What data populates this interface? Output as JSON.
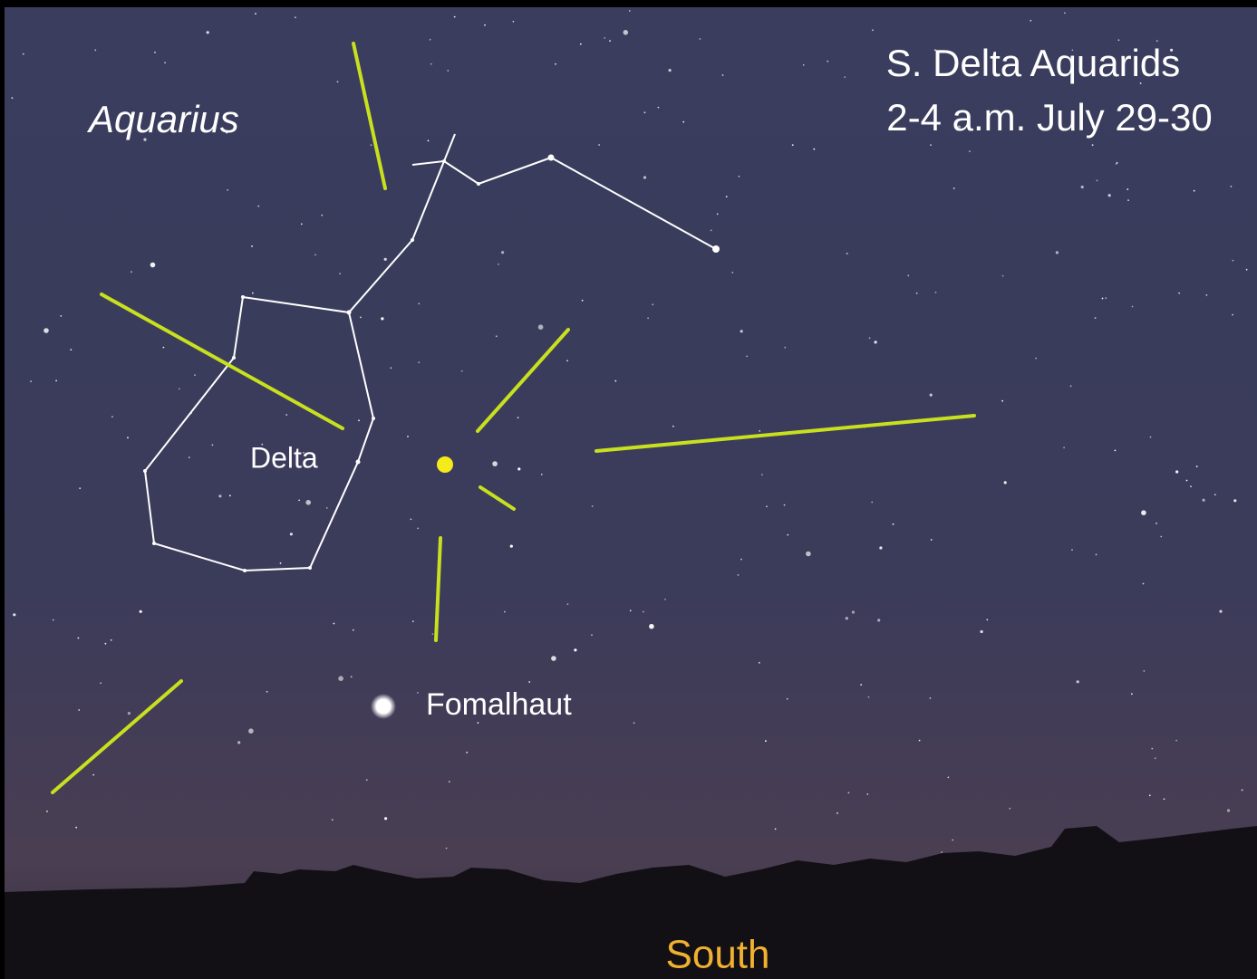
{
  "title": "S. Delta Aquarids",
  "subtitle": "2-4 a.m. July 29-30",
  "labels": {
    "constellation": "Aquarius",
    "star": "Delta",
    "bright_star": "Fomalhaut",
    "direction": "South"
  }
}
